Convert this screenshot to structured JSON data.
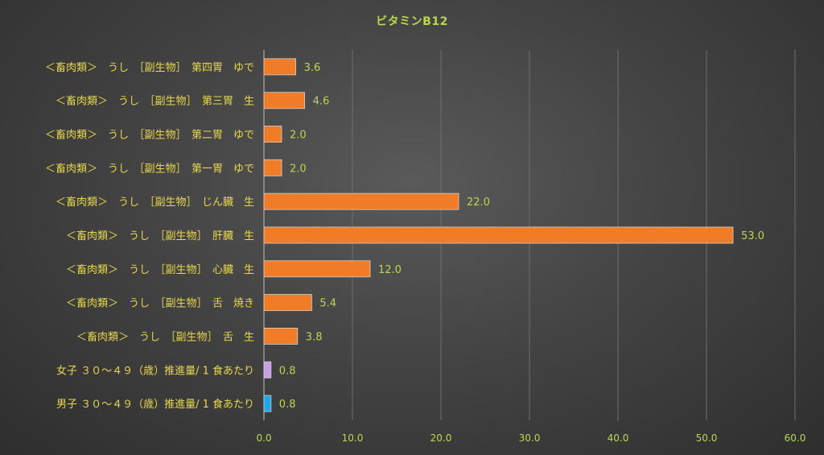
{
  "chart_data": {
    "type": "bar",
    "orientation": "horizontal",
    "title": "ビタミンB12",
    "xlabel": "",
    "ylabel": "",
    "xlim": [
      0,
      60
    ],
    "x_ticks": [
      "0.0",
      "10.0",
      "20.0",
      "30.0",
      "40.0",
      "50.0",
      "60.0"
    ],
    "grid": "vertical",
    "legend": "none",
    "categories": [
      "＜畜肉類＞　うし　［副生物］　第四胃　ゆで",
      "＜畜肉類＞　うし　［副生物］　第三胃　生",
      "＜畜肉類＞　うし　［副生物］　第二胃　ゆで",
      "＜畜肉類＞　うし　［副生物］　第一胃　ゆで",
      "＜畜肉類＞　うし　［副生物］　じん臓　生",
      "＜畜肉類＞　うし　［副生物］　肝臓　生",
      "＜畜肉類＞　うし　［副生物］　心臓　生",
      "＜畜肉類＞　うし　［副生物］　舌　焼き",
      "＜畜肉類＞　うし　［副生物］　舌　生",
      "女子 ３０～４９（歳）推進量/ 1 食あたり",
      "男子 ３０～４９（歳）推進量/ 1 食あたり"
    ],
    "values": [
      3.6,
      4.6,
      2.0,
      2.0,
      22.0,
      53.0,
      12.0,
      5.4,
      3.8,
      0.8,
      0.8
    ],
    "value_labels": [
      "3.6",
      "4.6",
      "2.0",
      "2.0",
      "22.0",
      "53.0",
      "12.0",
      "5.4",
      "3.8",
      "0.8",
      "0.8"
    ],
    "bar_colors": [
      "#f07c28",
      "#f07c28",
      "#f07c28",
      "#f07c28",
      "#f07c28",
      "#f07c28",
      "#f07c28",
      "#f07c28",
      "#f07c28",
      "#c9a0e8",
      "#1ba8e8"
    ],
    "colors": {
      "title": "#b8d84a",
      "category_label": "#e8d84a",
      "value_label": "#b8d84a",
      "tick_label": "#b8d84a",
      "grid": "#6e6e6e",
      "axis": "#bdbdbd",
      "bar_edge": "#d0d0d0"
    }
  }
}
